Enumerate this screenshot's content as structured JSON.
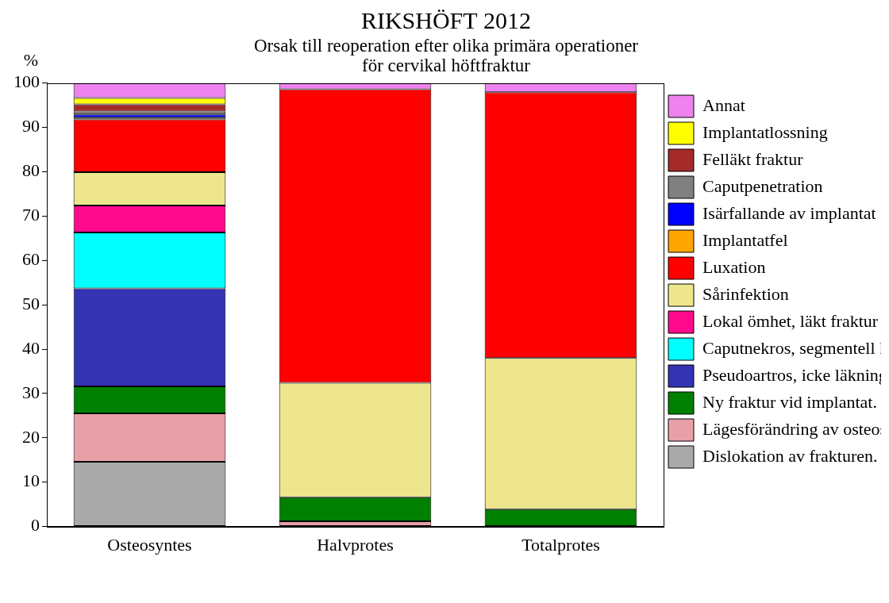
{
  "chart_data": {
    "type": "bar",
    "stacked": true,
    "title": "RIKSHÖFT 2012",
    "subtitle": [
      "Orsak till reoperation efter olika primära operationer",
      "för cervikal höftfraktur"
    ],
    "y_label": "%",
    "categories": [
      "Osteosyntes",
      "Halvprotes",
      "Totalprotes"
    ],
    "ylim": [
      0,
      100
    ],
    "yticks": [
      0,
      10,
      20,
      30,
      40,
      50,
      60,
      70,
      80,
      90,
      100
    ],
    "grid": false,
    "legend": "right",
    "series": [
      {
        "name": "Dislokation av frakturen.",
        "color": "#a9a9a9",
        "values": [
          14.6,
          0,
          0
        ]
      },
      {
        "name": "Lägesförändring av osteosyntesmaterial",
        "color": "#e8a0a8",
        "values": [
          10.9,
          1.2,
          0
        ]
      },
      {
        "name": "Ny fraktur vid implantat.",
        "color": "#008000",
        "values": [
          6.1,
          5.4,
          3.9
        ]
      },
      {
        "name": "Pseudoartros, icke läkning",
        "color": "#3333b3",
        "values": [
          22.1,
          0,
          0
        ]
      },
      {
        "name": "Caputnekros, segmentell kollaps",
        "color": "#00ffff",
        "values": [
          12.6,
          0,
          0
        ]
      },
      {
        "name": "Lokal ömhet, läkt fraktur",
        "color": "#ff0a8c",
        "values": [
          6.1,
          0,
          0
        ]
      },
      {
        "name": "Sårinfektion",
        "color": "#eee68c",
        "values": [
          7.5,
          25.8,
          34.1
        ]
      },
      {
        "name": "Luxation",
        "color": "#ff0000",
        "values": [
          11.9,
          66.2,
          59.9
        ]
      },
      {
        "name": "Implantatfel",
        "color": "#ffa500",
        "values": [
          0.4,
          0,
          0
        ]
      },
      {
        "name": "Isärfallande av implantat",
        "color": "#0000ff",
        "values": [
          0.7,
          0,
          0
        ]
      },
      {
        "name": "Caputpenetration",
        "color": "#808080",
        "values": [
          0.7,
          0,
          0
        ]
      },
      {
        "name": "Felläkt fraktur",
        "color": "#a52a2a",
        "values": [
          1.6,
          0,
          0
        ]
      },
      {
        "name": "Implantatlossning",
        "color": "#ffff00",
        "values": [
          1.4,
          0,
          0
        ]
      },
      {
        "name": "Annat",
        "color": "#ee82ee",
        "values": [
          3.4,
          1.4,
          2.1
        ]
      }
    ]
  }
}
